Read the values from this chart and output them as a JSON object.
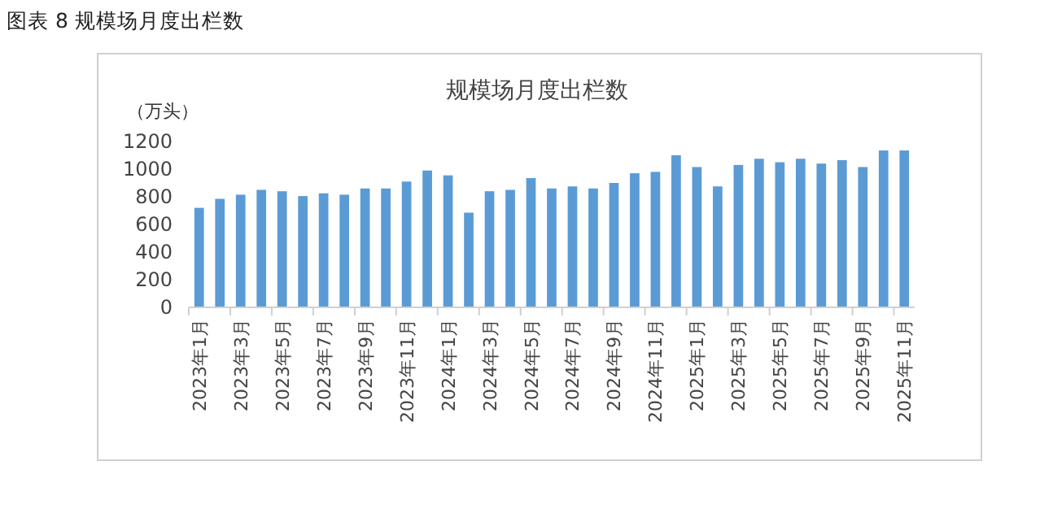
{
  "chart_data": {
    "type": "bar",
    "title": "图表 8  规模场月度出栏数",
    "subtitle": "规模场月度出栏数",
    "ylabel": "（万头）",
    "categories": [
      "2023年1月",
      null,
      "2023年3月",
      null,
      "2023年5月",
      null,
      "2023年7月",
      null,
      "2023年9月",
      null,
      "2023年11月",
      null,
      "2024年1月",
      null,
      "2024年3月",
      null,
      "2024年5月",
      null,
      "2024年7月",
      null,
      "2024年9月",
      null,
      "2024年11月",
      null,
      "2025年1月",
      null,
      "2025年3月",
      null,
      "2025年5月",
      null,
      "2025年7月",
      null,
      "2025年9月",
      null,
      "2025年11月"
    ],
    "values": [
      720,
      785,
      815,
      850,
      840,
      805,
      825,
      815,
      860,
      860,
      910,
      990,
      955,
      685,
      840,
      850,
      935,
      860,
      875,
      860,
      900,
      970,
      980,
      1100,
      1015,
      875,
      1030,
      1075,
      1050,
      1075,
      1040,
      1065,
      1015,
      1135,
      1135
    ],
    "color": "#5b9bd5",
    "ylim": [
      0,
      1200
    ],
    "yticks": [
      0,
      200,
      400,
      600,
      800,
      1000,
      1200
    ],
    "grid": false
  }
}
